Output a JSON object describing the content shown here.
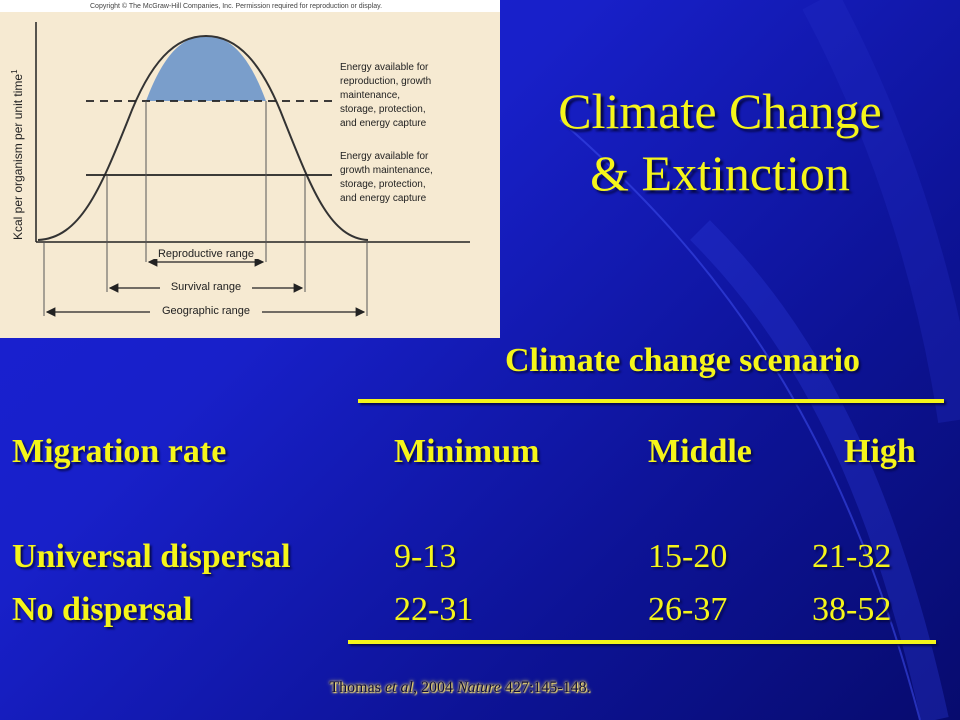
{
  "slide": {
    "title_line1": "Climate Change",
    "title_line2": "& Extinction",
    "colors": {
      "background": "#1a1fd6",
      "text": "#f5f51a",
      "curve_fill": "#7a9ecb"
    }
  },
  "figure": {
    "copyright": "Copyright © The McGraw-Hill Companies, Inc. Permission required for reproduction or display.",
    "y_axis_label": "Kcal per organism per unit time",
    "y_axis_superscript": "1",
    "annotation_upper": [
      "Energy available for",
      "reproduction, growth",
      "maintenance,",
      "storage, protection,",
      "and energy capture"
    ],
    "annotation_lower": [
      "Energy available for",
      "growth maintenance,",
      "storage, protection,",
      "and energy capture"
    ],
    "ranges": {
      "reproductive": "Reproductive range",
      "survival": "Survival range",
      "geographic": "Geographic range"
    }
  },
  "table": {
    "header": "Climate change scenario",
    "columns": [
      "Migration rate",
      "Minimum",
      "Middle",
      "High"
    ],
    "rows": [
      {
        "label": "Universal dispersal",
        "minimum": "9-13",
        "middle": "15-20",
        "high": "21-32"
      },
      {
        "label": "No dispersal",
        "minimum": "22-31",
        "middle": "26-37",
        "high": "38-52"
      }
    ]
  },
  "citation": {
    "author": "Thomas",
    "etal": "et al",
    "year_part": ", 2004 ",
    "journal": "Nature",
    "ref": " 427:145-148."
  }
}
